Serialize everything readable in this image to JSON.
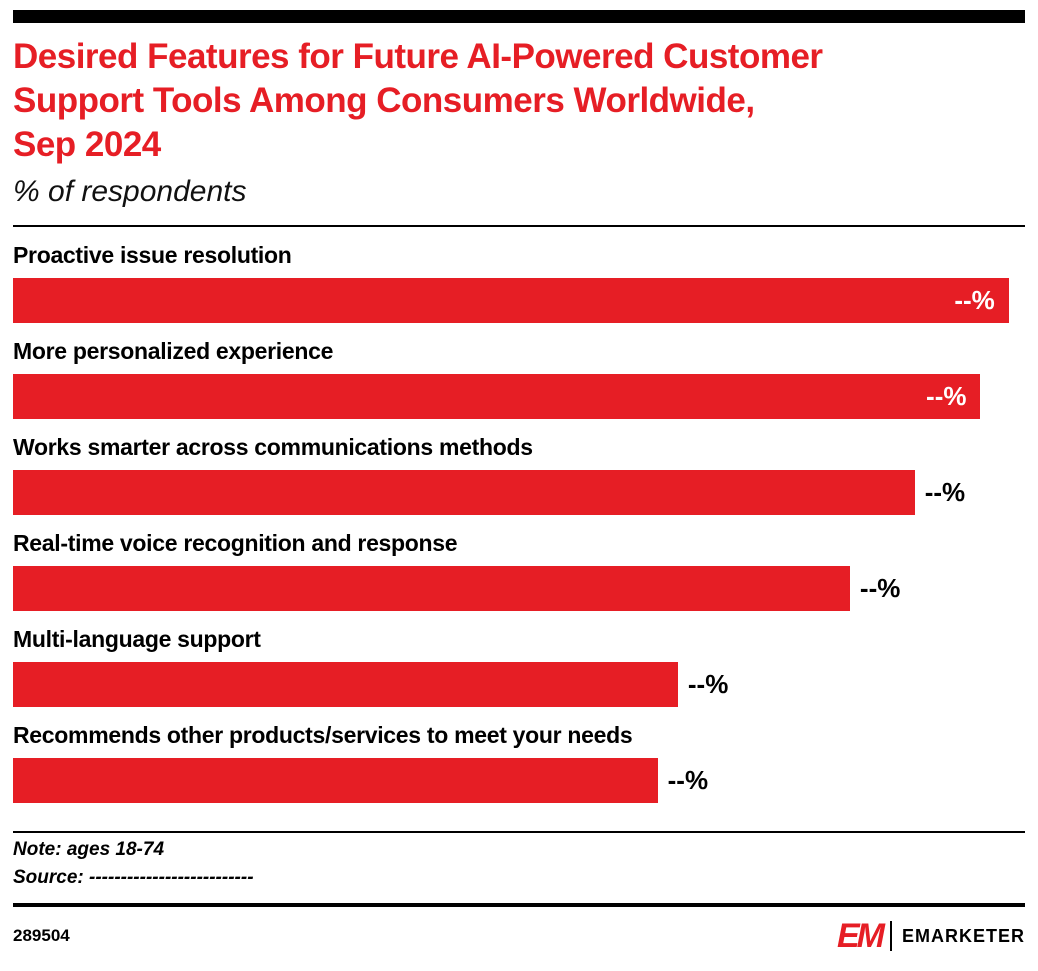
{
  "header": {
    "title_lines": [
      "Desired Features for Future AI-Powered Customer",
      "Support Tools Among Consumers Worldwide,",
      "Sep 2024"
    ],
    "subtitle": "% of respondents"
  },
  "chart_data": {
    "type": "bar",
    "orientation": "horizontal",
    "title": "Desired Features for Future AI-Powered Customer Support Tools Among Consumers Worldwide, Sep 2024",
    "unit": "% of respondents",
    "categories": [
      "Proactive issue resolution",
      "More personalized experience",
      "Works smarter across communications methods",
      "Real-time voice recognition and response",
      "Multi-language support",
      "Recommends other products/services to meet your needs"
    ],
    "value_labels": [
      "--%",
      "--%",
      "--%",
      "--%",
      "--%",
      "--%"
    ],
    "bar_width_pct": [
      98.4,
      95.6,
      89.1,
      82.7,
      65.7,
      63.7
    ],
    "label_inside": [
      true,
      true,
      false,
      false,
      false,
      false
    ],
    "bar_color": "#e61e25",
    "legend": "none",
    "grid": false
  },
  "footer": {
    "note": "Note: ages 18-74",
    "source": "Source: --------------------------",
    "chart_id": "289504",
    "brand": "EMARKETER",
    "logo_mark": "EM"
  },
  "colors": {
    "accent": "#e61e25",
    "bar": "#e61e25",
    "text": "#000000",
    "background": "#ffffff"
  }
}
